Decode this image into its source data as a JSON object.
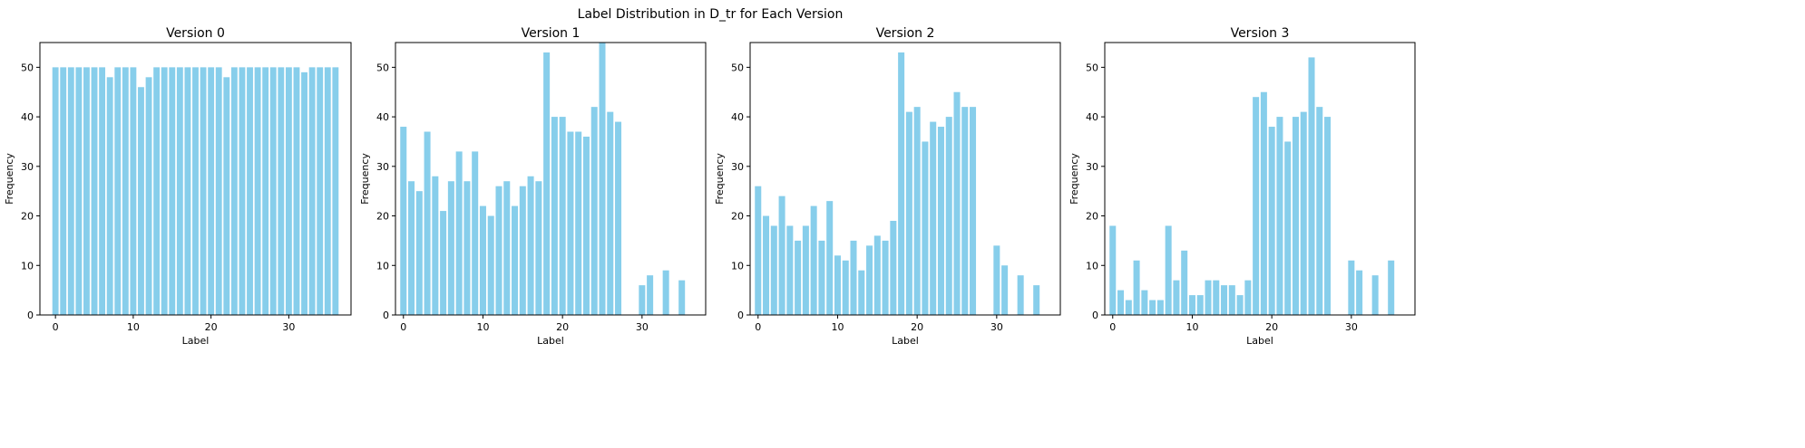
{
  "figure": {
    "suptitle": "Label Distribution in D_tr for Each Version",
    "bar_color": "#87CEEB"
  },
  "chart_data": [
    {
      "type": "bar",
      "title": "Version 0",
      "xlabel": "Label",
      "ylabel": "Frequency",
      "xlim": [
        -2,
        38
      ],
      "ylim": [
        0,
        55
      ],
      "xticks": [
        0,
        10,
        20,
        30
      ],
      "yticks": [
        0,
        10,
        20,
        30,
        40,
        50
      ],
      "categories": [
        0,
        1,
        2,
        3,
        4,
        5,
        6,
        7,
        8,
        9,
        10,
        11,
        12,
        13,
        14,
        15,
        16,
        17,
        18,
        19,
        20,
        21,
        22,
        23,
        24,
        25,
        26,
        27,
        28,
        29,
        30,
        31,
        32,
        33,
        34,
        35,
        36
      ],
      "values": [
        50,
        50,
        50,
        50,
        50,
        50,
        50,
        48,
        50,
        50,
        50,
        46,
        48,
        50,
        50,
        50,
        50,
        50,
        50,
        50,
        50,
        50,
        48,
        50,
        50,
        50,
        50,
        50,
        50,
        50,
        50,
        50,
        49,
        50,
        50,
        50,
        50
      ]
    },
    {
      "type": "bar",
      "title": "Version 1",
      "xlabel": "Label",
      "ylabel": "Frequency",
      "xlim": [
        -1,
        38
      ],
      "ylim": [
        0,
        55
      ],
      "xticks": [
        0,
        10,
        20,
        30
      ],
      "yticks": [
        0,
        10,
        20,
        30,
        40,
        50
      ],
      "categories": [
        0,
        1,
        2,
        3,
        4,
        5,
        6,
        7,
        8,
        9,
        10,
        11,
        12,
        13,
        14,
        15,
        16,
        17,
        18,
        19,
        20,
        21,
        22,
        23,
        24,
        25,
        26,
        27,
        30,
        31,
        33,
        35
      ],
      "values": [
        38,
        27,
        25,
        37,
        28,
        21,
        27,
        33,
        27,
        33,
        22,
        20,
        26,
        27,
        22,
        26,
        28,
        27,
        53,
        40,
        40,
        37,
        37,
        36,
        42,
        55,
        41,
        39,
        6,
        8,
        9,
        7
      ]
    },
    {
      "type": "bar",
      "title": "Version 2",
      "xlabel": "Label",
      "ylabel": "Frequency",
      "xlim": [
        -1,
        38
      ],
      "ylim": [
        0,
        55
      ],
      "xticks": [
        0,
        10,
        20,
        30
      ],
      "yticks": [
        0,
        10,
        20,
        30,
        40,
        50
      ],
      "categories": [
        0,
        1,
        2,
        3,
        4,
        5,
        6,
        7,
        8,
        9,
        10,
        11,
        12,
        13,
        14,
        15,
        16,
        17,
        18,
        19,
        20,
        21,
        22,
        23,
        24,
        25,
        26,
        27,
        30,
        31,
        33,
        35
      ],
      "values": [
        26,
        20,
        18,
        24,
        18,
        15,
        18,
        22,
        15,
        23,
        12,
        11,
        15,
        9,
        14,
        16,
        15,
        19,
        53,
        41,
        42,
        35,
        39,
        38,
        40,
        45,
        42,
        42,
        14,
        10,
        8,
        6
      ]
    },
    {
      "type": "bar",
      "title": "Version 3",
      "xlabel": "Label",
      "ylabel": "Frequency",
      "xlim": [
        -1,
        38
      ],
      "ylim": [
        0,
        55
      ],
      "xticks": [
        0,
        10,
        20,
        30
      ],
      "yticks": [
        0,
        10,
        20,
        30,
        40,
        50
      ],
      "categories": [
        0,
        1,
        2,
        3,
        4,
        5,
        6,
        7,
        8,
        9,
        10,
        11,
        12,
        13,
        14,
        15,
        16,
        17,
        18,
        19,
        20,
        21,
        22,
        23,
        24,
        25,
        26,
        27,
        30,
        31,
        33,
        35
      ],
      "values": [
        18,
        5,
        3,
        11,
        5,
        3,
        3,
        18,
        7,
        13,
        4,
        4,
        7,
        7,
        6,
        6,
        4,
        7,
        44,
        45,
        38,
        40,
        35,
        40,
        41,
        52,
        42,
        40,
        11,
        9,
        8,
        11
      ]
    }
  ]
}
